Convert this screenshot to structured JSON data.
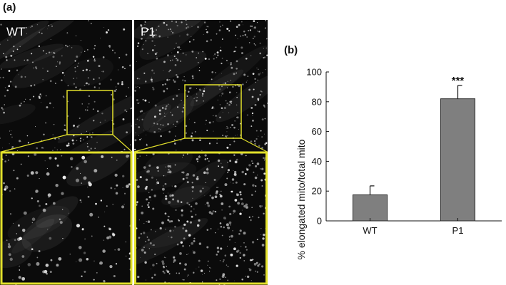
{
  "panels": {
    "a_label": "(a)",
    "b_label": "(b)"
  },
  "micrographs": {
    "left_label": "WT",
    "right_label": "P1",
    "highlight_color": "#e2e02b"
  },
  "chart_data": {
    "type": "bar",
    "categories": [
      "WT",
      "P1"
    ],
    "values": [
      17.5,
      82
    ],
    "errors": [
      6,
      9
    ],
    "annotations": [
      "",
      "***"
    ],
    "xlabel": "",
    "ylabel": "% elongated mito/total mito",
    "ylim": [
      0,
      100
    ],
    "yticks": [
      0,
      20,
      40,
      60,
      80,
      100
    ],
    "grid": false,
    "bar_color": "#7f7f7f"
  }
}
